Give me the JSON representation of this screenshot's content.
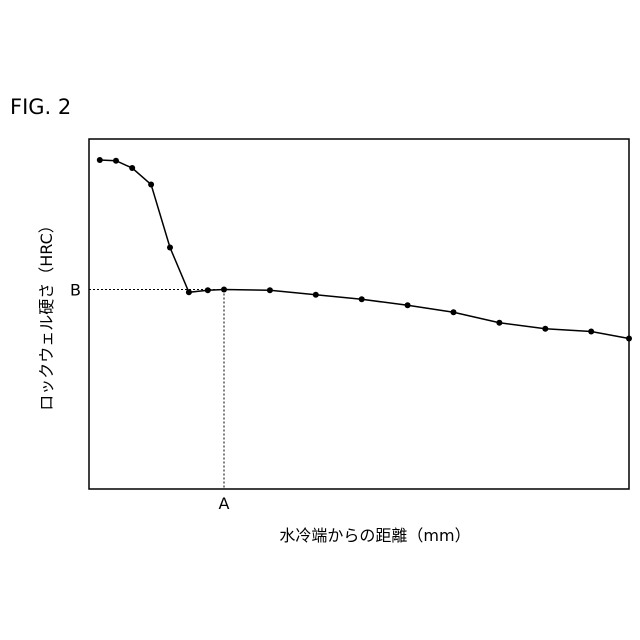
{
  "figure": {
    "label": "FIG. 2"
  },
  "chart_data": {
    "type": "line",
    "title": "",
    "xlabel": "水冷端からの距離（mm）",
    "ylabel": "ロックウェル硬さ（HRC）",
    "xlim": [
      0,
      100
    ],
    "ylim": [
      0,
      100
    ],
    "grid": false,
    "legend": "none",
    "markers": {
      "x_marker_label": "A",
      "y_marker_label": "B",
      "x_marker_value": 25,
      "y_marker_value": 57
    },
    "series": [
      {
        "x": [
          2,
          5,
          8,
          11.5,
          15,
          18.5,
          22,
          25,
          33.5,
          42,
          50.5,
          59,
          67.5,
          76,
          84.5,
          93,
          101.5
        ],
        "y": [
          94,
          93.8,
          91.7,
          87,
          69,
          56.2,
          56.8,
          57,
          56.8,
          55.5,
          54.2,
          52.5,
          50.5,
          47.5,
          45.8,
          45,
          43
        ]
      }
    ]
  },
  "colors": {
    "line": "#000000",
    "axis": "#000000",
    "background": "#ffffff"
  }
}
